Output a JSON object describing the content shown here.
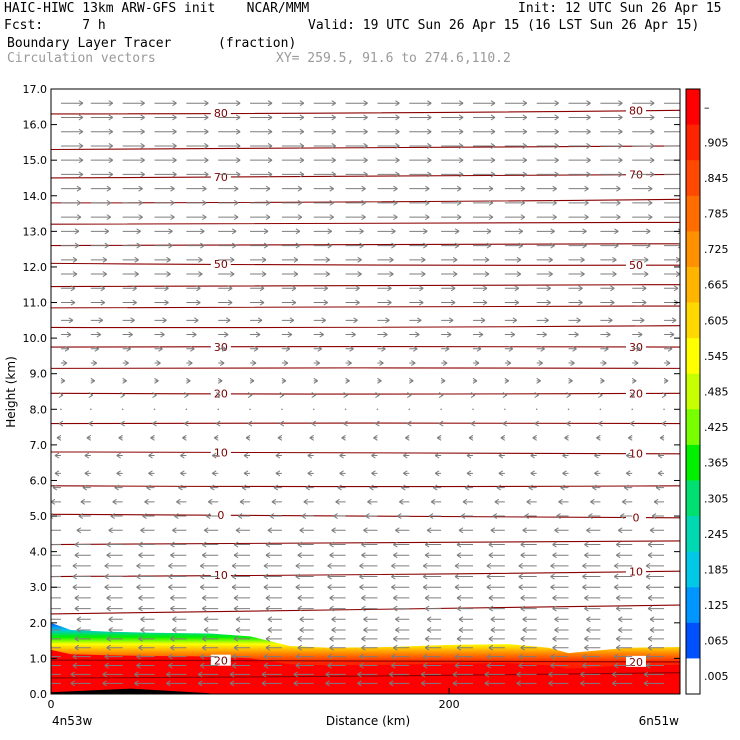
{
  "header": {
    "line1_left": "HAIC-HIWC 13km ARW-GFS init    NCAR/MMM",
    "line1_right": "Init: 12 UTC Sun 26 Apr 15",
    "line2_left": "Fcst:     7 h",
    "line2_right": "Valid: 19 UTC Sun 26 Apr 15 (16 LST Sun 26 Apr 15)",
    "line3_left": "Boundary Layer Tracer",
    "line3_units": "(fraction)",
    "line4_left": "Circulation vectors",
    "line4_xy": "XY= 259.5, 91.6 to 274.6,110.2"
  },
  "chart_data": {
    "type": "heatmap",
    "title": "Boundary Layer Tracer",
    "xlabel": "Distance (km)",
    "ylabel": "Height (km)",
    "xlim": [
      0,
      316
    ],
    "ylim": [
      0,
      17
    ],
    "x_ticks": [
      {
        "value": 0,
        "label": "0"
      },
      {
        "value": 200,
        "label": "200"
      }
    ],
    "y_ticks": [
      {
        "value": 0,
        "label": "0.0"
      },
      {
        "value": 1,
        "label": "1.0"
      },
      {
        "value": 2,
        "label": "2.0"
      },
      {
        "value": 3,
        "label": "3.0"
      },
      {
        "value": 4,
        "label": "4.0"
      },
      {
        "value": 5,
        "label": "5.0"
      },
      {
        "value": 6,
        "label": "6.0"
      },
      {
        "value": 7,
        "label": "7.0"
      },
      {
        "value": 8,
        "label": "8.0"
      },
      {
        "value": 9,
        "label": "9.0"
      },
      {
        "value": 10,
        "label": "10.0"
      },
      {
        "value": 11,
        "label": "11.0"
      },
      {
        "value": 12,
        "label": "12.0"
      },
      {
        "value": 13,
        "label": "13.0"
      },
      {
        "value": 14,
        "label": "14.0"
      },
      {
        "value": 15,
        "label": "15.0"
      },
      {
        "value": 16,
        "label": "16.0"
      },
      {
        "value": 17,
        "label": "17.0"
      }
    ],
    "x_endpoint_labels": {
      "left": "4n53w",
      "right": "6n51w"
    },
    "grid": false,
    "colorbar": {
      "position": "right",
      "labels": [
        "–",
        ".905",
        ".845",
        ".785",
        ".725",
        ".665",
        ".605",
        ".545",
        ".485",
        ".425",
        ".365",
        ".305",
        ".245",
        ".185",
        ".125",
        ".065",
        ".005"
      ],
      "colors": [
        "#ff0000",
        "#ff2400",
        "#ff4800",
        "#ff6c00",
        "#ff9000",
        "#ffb400",
        "#ffd800",
        "#ffff00",
        "#c8ff00",
        "#78ff00",
        "#00f000",
        "#00e070",
        "#00d8b4",
        "#00c8e6",
        "#0096ff",
        "#0050ff",
        "#ffffff"
      ]
    },
    "boundary_layer_top_km": {
      "x": [
        0,
        10,
        30,
        50,
        80,
        100,
        120,
        140,
        170,
        200,
        230,
        250,
        260,
        270,
        290,
        316
      ],
      "y": [
        2.0,
        1.8,
        1.75,
        1.72,
        1.7,
        1.62,
        1.35,
        1.3,
        1.32,
        1.38,
        1.4,
        1.3,
        1.15,
        1.2,
        1.3,
        1.32
      ]
    },
    "contours": [
      {
        "label": "80",
        "heights": [
          16.3,
          16.4
        ]
      },
      {
        "label": "",
        "heights": [
          15.3,
          15.4
        ]
      },
      {
        "label": "70",
        "heights": [
          14.5,
          14.6
        ]
      },
      {
        "label": "",
        "heights": [
          13.8,
          13.9
        ]
      },
      {
        "label": "",
        "heights": [
          13.2,
          13.25
        ]
      },
      {
        "label": "",
        "heights": [
          12.6,
          12.65
        ]
      },
      {
        "label": "50",
        "heights": [
          12.1,
          12.05
        ]
      },
      {
        "label": "",
        "heights": [
          11.45,
          11.5
        ]
      },
      {
        "label": "",
        "heights": [
          10.85,
          10.9
        ]
      },
      {
        "label": "",
        "heights": [
          10.3,
          10.35
        ]
      },
      {
        "label": "30",
        "heights": [
          9.75,
          9.75
        ]
      },
      {
        "label": "",
        "heights": [
          9.15,
          9.15
        ]
      },
      {
        "label": "20",
        "heights": [
          8.45,
          8.45
        ]
      },
      {
        "label": "",
        "heights": [
          7.6,
          7.6
        ]
      },
      {
        "label": "10",
        "heights": [
          6.8,
          6.75
        ]
      },
      {
        "label": "",
        "heights": [
          5.85,
          5.85
        ]
      },
      {
        "label": "0",
        "heights": [
          5.05,
          4.95
        ]
      },
      {
        "label": "",
        "heights": [
          4.2,
          4.3
        ]
      },
      {
        "label": "10",
        "heights": [
          3.3,
          3.45
        ]
      },
      {
        "label": "",
        "heights": [
          2.25,
          2.5
        ]
      },
      {
        "label": "20",
        "heights": [
          0.95,
          0.9
        ]
      },
      {
        "label": "",
        "heights": [
          0.45,
          0.6
        ]
      }
    ],
    "wind_columns_x_km": [
      5,
      20,
      36,
      52,
      68,
      84,
      100,
      116,
      132,
      148,
      164,
      180,
      196,
      212,
      228,
      244,
      260,
      276,
      292,
      308
    ],
    "wind_levels_km": [
      0.3,
      0.55,
      0.8,
      1.05,
      1.3,
      1.55,
      1.8,
      2.1,
      2.4,
      2.7,
      3.0,
      3.3,
      3.6,
      3.9,
      4.2,
      4.6,
      5.0,
      5.4,
      5.8,
      6.2,
      6.7,
      7.2,
      7.6,
      8.0,
      8.4,
      8.8,
      9.3,
      9.7,
      10.1,
      10.5,
      11.0,
      11.4,
      11.8,
      12.2,
      12.6,
      13.0,
      13.4,
      13.8,
      14.2,
      14.6,
      15.0,
      15.4,
      15.8,
      16.2,
      16.6
    ],
    "wind_u_by_level_ms": [
      -10,
      -10,
      -9,
      -9,
      -8,
      -8,
      -7,
      -7,
      -8,
      -8,
      -9,
      -9,
      -9,
      -8,
      -8,
      -7,
      -6,
      -5,
      -4,
      -3,
      -3,
      -2,
      -1,
      0,
      1,
      2,
      3,
      4,
      5,
      6,
      7,
      7,
      8,
      8,
      9,
      9,
      10,
      10,
      10,
      11,
      11,
      11,
      11,
      11,
      11
    ]
  }
}
